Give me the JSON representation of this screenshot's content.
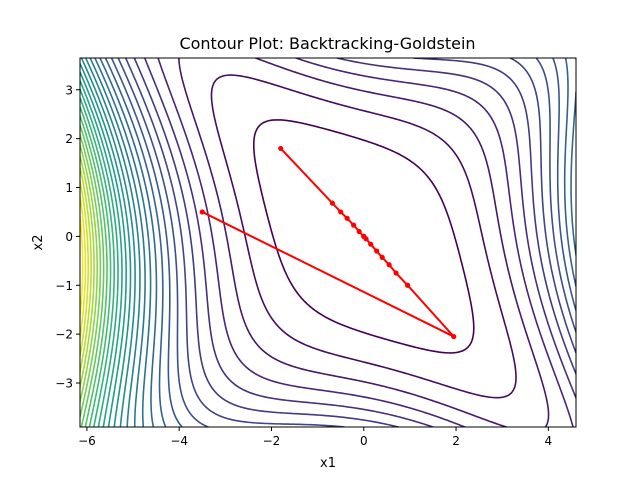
{
  "chart_data": {
    "type": "contour",
    "title": "Contour Plot: Backtracking-Goldstein",
    "xlabel": "x1",
    "ylabel": "x2",
    "xlim": [
      -6.15,
      4.6
    ],
    "ylim": [
      -3.9,
      3.65
    ],
    "x_ticks": [
      -6,
      -4,
      -2,
      0,
      2,
      4
    ],
    "y_ticks": [
      -3,
      -2,
      -1,
      0,
      1,
      2,
      3
    ],
    "x_tick_labels": [
      "−6",
      "−4",
      "−2",
      "0",
      "2",
      "4"
    ],
    "y_tick_labels": [
      "−3",
      "−2",
      "−1",
      "0",
      "1",
      "2",
      "3"
    ],
    "grid": false,
    "legend": "none",
    "colormap": "viridis",
    "contour_levels": 30,
    "trajectories": [
      {
        "color": "#ff0000",
        "marker": "dot",
        "points": [
          [
            -3.5,
            0.5
          ],
          [
            1.95,
            -2.05
          ],
          [
            0.95,
            -1.0
          ],
          [
            0.7,
            -0.75
          ],
          [
            0.55,
            -0.58
          ],
          [
            0.4,
            -0.43
          ],
          [
            0.28,
            -0.3
          ],
          [
            0.15,
            -0.16
          ],
          [
            0.05,
            -0.05
          ],
          [
            0.0,
            0.0
          ]
        ]
      },
      {
        "color": "#ff0000",
        "marker": "dot",
        "points": [
          [
            -1.8,
            1.8
          ],
          [
            -0.68,
            0.68
          ],
          [
            -0.5,
            0.5
          ],
          [
            -0.36,
            0.37
          ],
          [
            -0.22,
            0.23
          ],
          [
            -0.1,
            0.1
          ],
          [
            0.0,
            0.0
          ]
        ]
      }
    ]
  },
  "colors": {
    "trajectory": "#ff0000",
    "axes": "#000000",
    "background": "#ffffff"
  }
}
